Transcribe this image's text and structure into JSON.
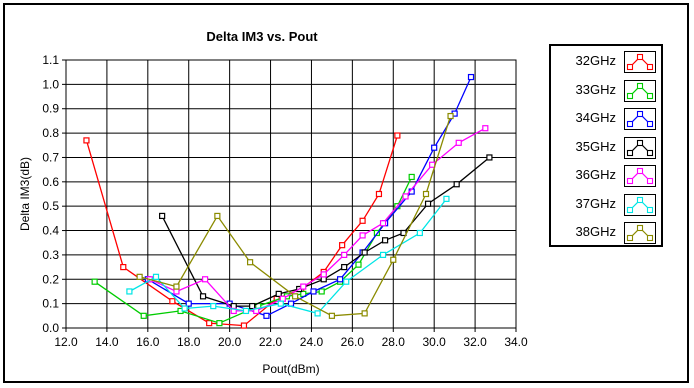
{
  "chart_data": {
    "type": "line",
    "title": "Delta IM3 vs. Pout",
    "xlabel": "Pout(dBm)",
    "ylabel": "Delta IM3(dB)",
    "xlim": [
      12.0,
      34.0
    ],
    "ylim": [
      0.0,
      1.1
    ],
    "xticks": [
      "12.0",
      "14.0",
      "16.0",
      "18.0",
      "20.0",
      "22.0",
      "24.0",
      "26.0",
      "28.0",
      "30.0",
      "32.0",
      "34.0"
    ],
    "yticks": [
      "0.0",
      "0.1",
      "0.2",
      "0.3",
      "0.4",
      "0.5",
      "0.6",
      "0.7",
      "0.8",
      "0.9",
      "1.0",
      "1.1"
    ],
    "grid": true,
    "legend_position": "right",
    "series": [
      {
        "name": "32GHz",
        "color": "#ff0000",
        "x": [
          13.0,
          14.8,
          17.2,
          19.0,
          20.7,
          22.3,
          23.5,
          24.6,
          25.5,
          26.5,
          27.3,
          28.2
        ],
        "y": [
          0.77,
          0.25,
          0.11,
          0.02,
          0.01,
          0.12,
          0.16,
          0.23,
          0.34,
          0.44,
          0.55,
          0.79
        ]
      },
      {
        "name": "33GHz",
        "color": "#00cc00",
        "x": [
          13.4,
          15.8,
          17.6,
          19.5,
          21.4,
          22.8,
          23.6,
          24.5,
          25.4,
          26.3,
          27.2,
          28.2,
          28.9
        ],
        "y": [
          0.19,
          0.05,
          0.07,
          0.02,
          0.09,
          0.13,
          0.14,
          0.15,
          0.19,
          0.26,
          0.39,
          0.5,
          0.62
        ]
      },
      {
        "name": "34GHz",
        "color": "#0000ff",
        "x": [
          16.0,
          18.0,
          20.0,
          21.8,
          23.0,
          24.1,
          25.4,
          26.5,
          27.6,
          28.9,
          30.0,
          31.0,
          31.8
        ],
        "y": [
          0.2,
          0.1,
          0.1,
          0.05,
          0.1,
          0.15,
          0.2,
          0.31,
          0.43,
          0.56,
          0.74,
          0.88,
          1.03
        ]
      },
      {
        "name": "35GHz",
        "color": "#000000",
        "x": [
          16.7,
          18.7,
          20.2,
          21.1,
          22.4,
          23.4,
          24.6,
          25.6,
          26.6,
          27.6,
          28.5,
          29.7,
          31.1,
          32.7
        ],
        "y": [
          0.46,
          0.13,
          0.09,
          0.09,
          0.14,
          0.16,
          0.2,
          0.25,
          0.31,
          0.36,
          0.39,
          0.51,
          0.59,
          0.7
        ]
      },
      {
        "name": "36GHz",
        "color": "#ff00ff",
        "x": [
          16.1,
          17.4,
          18.8,
          20.2,
          21.3,
          22.6,
          23.6,
          24.6,
          25.6,
          26.5,
          27.5,
          28.6,
          29.9,
          31.2,
          32.5
        ],
        "y": [
          0.2,
          0.15,
          0.2,
          0.07,
          0.07,
          0.12,
          0.17,
          0.22,
          0.3,
          0.38,
          0.43,
          0.54,
          0.67,
          0.76,
          0.82
        ]
      },
      {
        "name": "37GHz",
        "color": "#00e5e5",
        "x": [
          15.1,
          16.4,
          17.8,
          19.2,
          20.8,
          22.5,
          24.3,
          25.7,
          27.5,
          29.3,
          30.6
        ],
        "y": [
          0.15,
          0.21,
          0.08,
          0.09,
          0.07,
          0.1,
          0.06,
          0.19,
          0.3,
          0.39,
          0.53
        ]
      },
      {
        "name": "38GHz",
        "color": "#8b8b00",
        "x": [
          15.6,
          17.4,
          19.4,
          21.0,
          23.2,
          25.0,
          26.6,
          28.0,
          29.6,
          30.8
        ],
        "y": [
          0.21,
          0.17,
          0.46,
          0.27,
          0.13,
          0.05,
          0.06,
          0.28,
          0.55,
          0.87
        ]
      }
    ]
  }
}
